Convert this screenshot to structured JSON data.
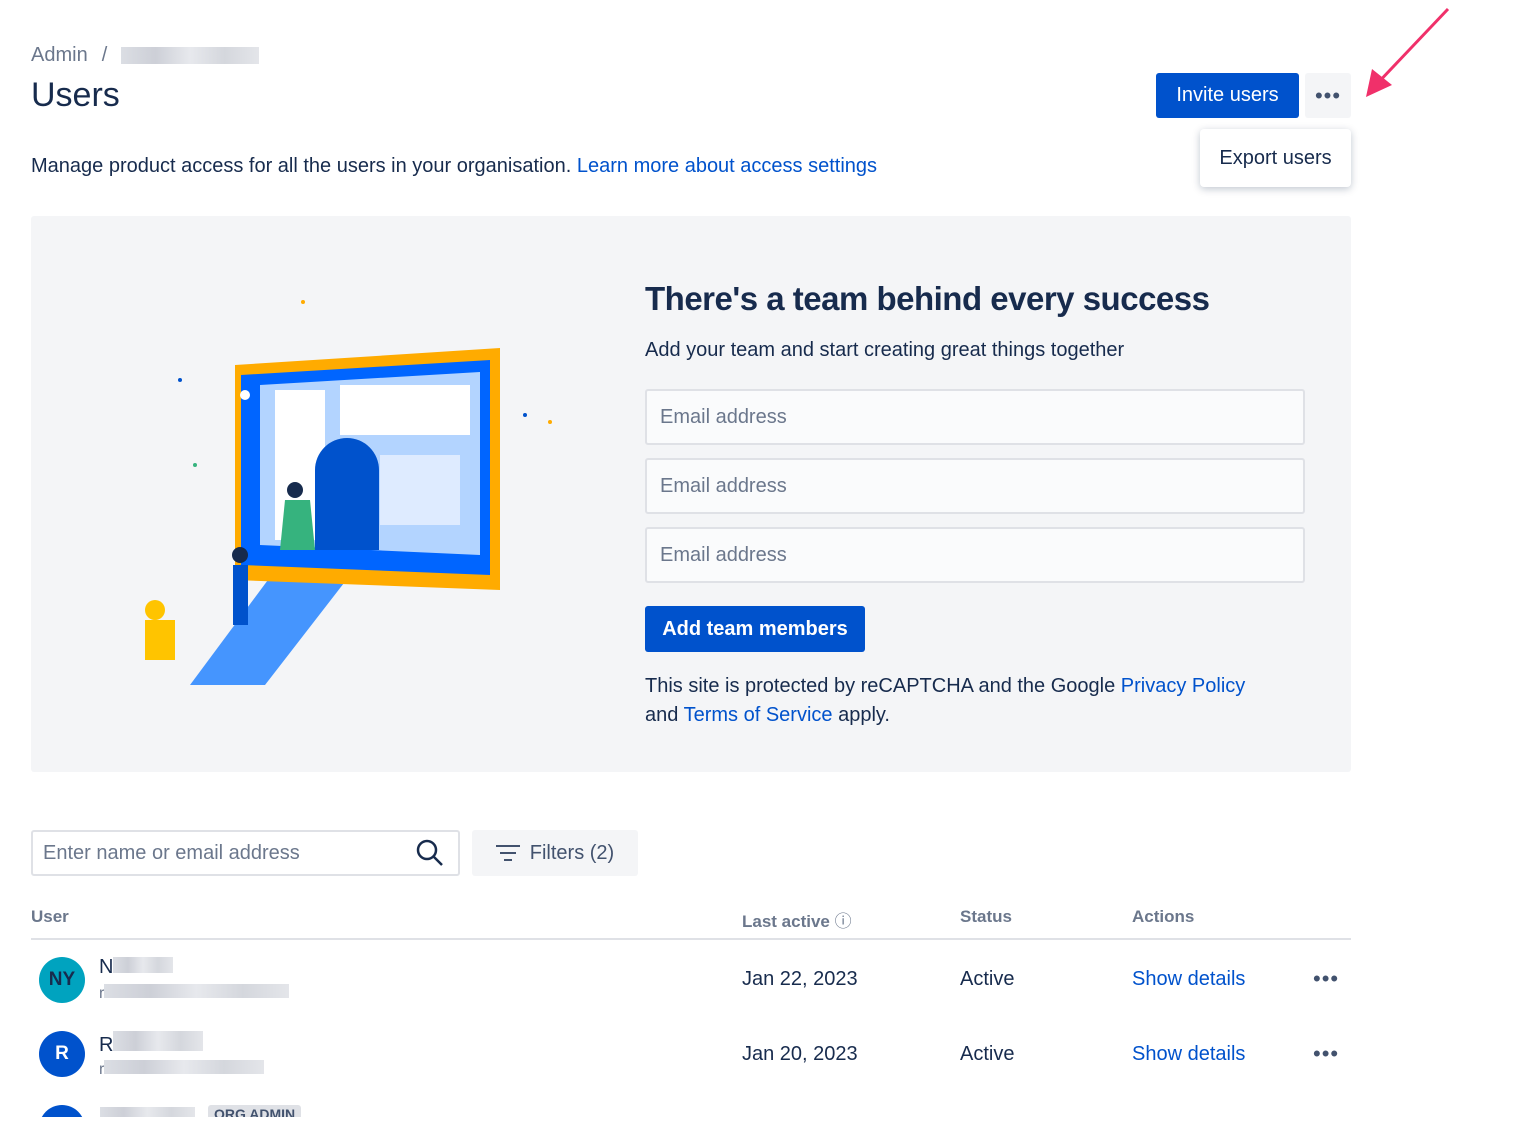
{
  "breadcrumb": {
    "root": "Admin",
    "separator": "/"
  },
  "header": {
    "title": "Users",
    "invite_label": "Invite users",
    "more_label": "•••",
    "menu_items": [
      "Export users"
    ]
  },
  "description": {
    "text": "Manage product access for all the users in your organisation.",
    "link": "Learn more about access settings"
  },
  "banner": {
    "title": "There's a team behind every success",
    "subtitle": "Add your team and start creating great things together",
    "email_placeholder": "Email address",
    "add_label": "Add team members",
    "captcha_prefix": "This site is protected by reCAPTCHA and the Google",
    "privacy": "Privacy Policy",
    "and": "and",
    "terms": "Terms of Service",
    "apply": "apply."
  },
  "search": {
    "placeholder": "Enter name or email address"
  },
  "filters": {
    "label": "Filters (2)"
  },
  "table": {
    "headers": {
      "user": "User",
      "last_active": "Last active",
      "status": "Status",
      "actions": "Actions"
    },
    "rows": [
      {
        "initials": "NY",
        "avatar_color": "#00a3bf",
        "name_initial": "N",
        "email_initial": "r",
        "last_active": "Jan 22, 2023",
        "status": "Active",
        "action": "Show details"
      },
      {
        "initials": "R",
        "avatar_color": "#0052cc",
        "name_initial": "R",
        "email_initial": "r",
        "last_active": "Jan 20, 2023",
        "status": "Active",
        "action": "Show details"
      },
      {
        "initials": "",
        "avatar_color": "#0052cc",
        "badge": "ORG ADMIN"
      }
    ]
  },
  "colors": {
    "primary": "#0052cc",
    "annotation_arrow": "#f0306a"
  }
}
